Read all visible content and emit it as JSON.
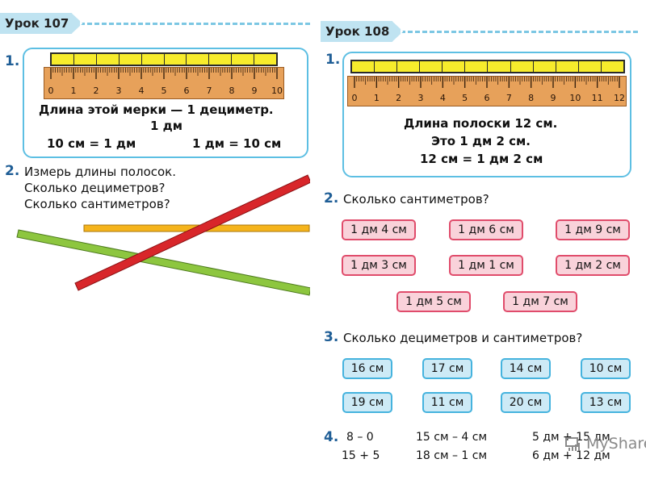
{
  "left_page": {
    "header": "Урок 107",
    "task1": {
      "num": "1.",
      "ruler_labels": [
        "0",
        "1",
        "2",
        "3",
        "4",
        "5",
        "6",
        "7",
        "8",
        "9",
        "10"
      ],
      "line1": "Длина этой мерки — 1 дециметр.",
      "line2": "1 дм",
      "eq1": "10 см = 1 дм",
      "eq2": "1 дм = 10 см"
    },
    "task2": {
      "num": "2.",
      "lines": [
        "Измерь длины полосок.",
        "Сколько дециметров?",
        "Сколько сантиметров?"
      ],
      "strip_colors": {
        "red": "#d8262a",
        "green": "#8dc63f",
        "orange": "#f5b41c"
      }
    }
  },
  "right_page": {
    "header": "Урок 108",
    "task1": {
      "num": "1.",
      "ruler_labels": [
        "0",
        "1",
        "2",
        "3",
        "4",
        "5",
        "6",
        "7",
        "8",
        "9",
        "10",
        "11",
        "12"
      ],
      "line1": "Длина полоски 12 см.",
      "line2": "Это 1 дм 2 см.",
      "line3": "12 см = 1 дм 2 см"
    },
    "task2": {
      "num": "2.",
      "question": "Сколько сантиметров?",
      "chips": [
        "1 дм 4 см",
        "1 дм 6 см",
        "1 дм 9 см",
        "1 дм 3 см",
        "1 дм 1 см",
        "1 дм 2 см",
        "1 дм 5 см",
        "1 дм 7 см"
      ]
    },
    "task3": {
      "num": "3.",
      "question": "Сколько дециметров и сантиметров?",
      "chips": [
        "16 см",
        "17 см",
        "14 см",
        "10 см",
        "19 см",
        "11 см",
        "20 см",
        "13 см"
      ]
    },
    "task4": {
      "num": "4.",
      "col1": [
        "8 – 0",
        "15 + 5"
      ],
      "col2": [
        "15 см – 4 см",
        "18 см – 1 см"
      ],
      "col3": [
        "5 дм + 15 дм",
        "6 дм + 12 дм"
      ]
    }
  },
  "watermark": {
    "text": "MyShared"
  },
  "colors": {
    "accent_blue": "#5dbfe3",
    "task_number": "#1f5e96",
    "chip_pink": "#f9d2da",
    "chip_blue": "#cdeaf6",
    "ruler": "#e7a15a",
    "strip_yellow": "#f7ec2c"
  }
}
